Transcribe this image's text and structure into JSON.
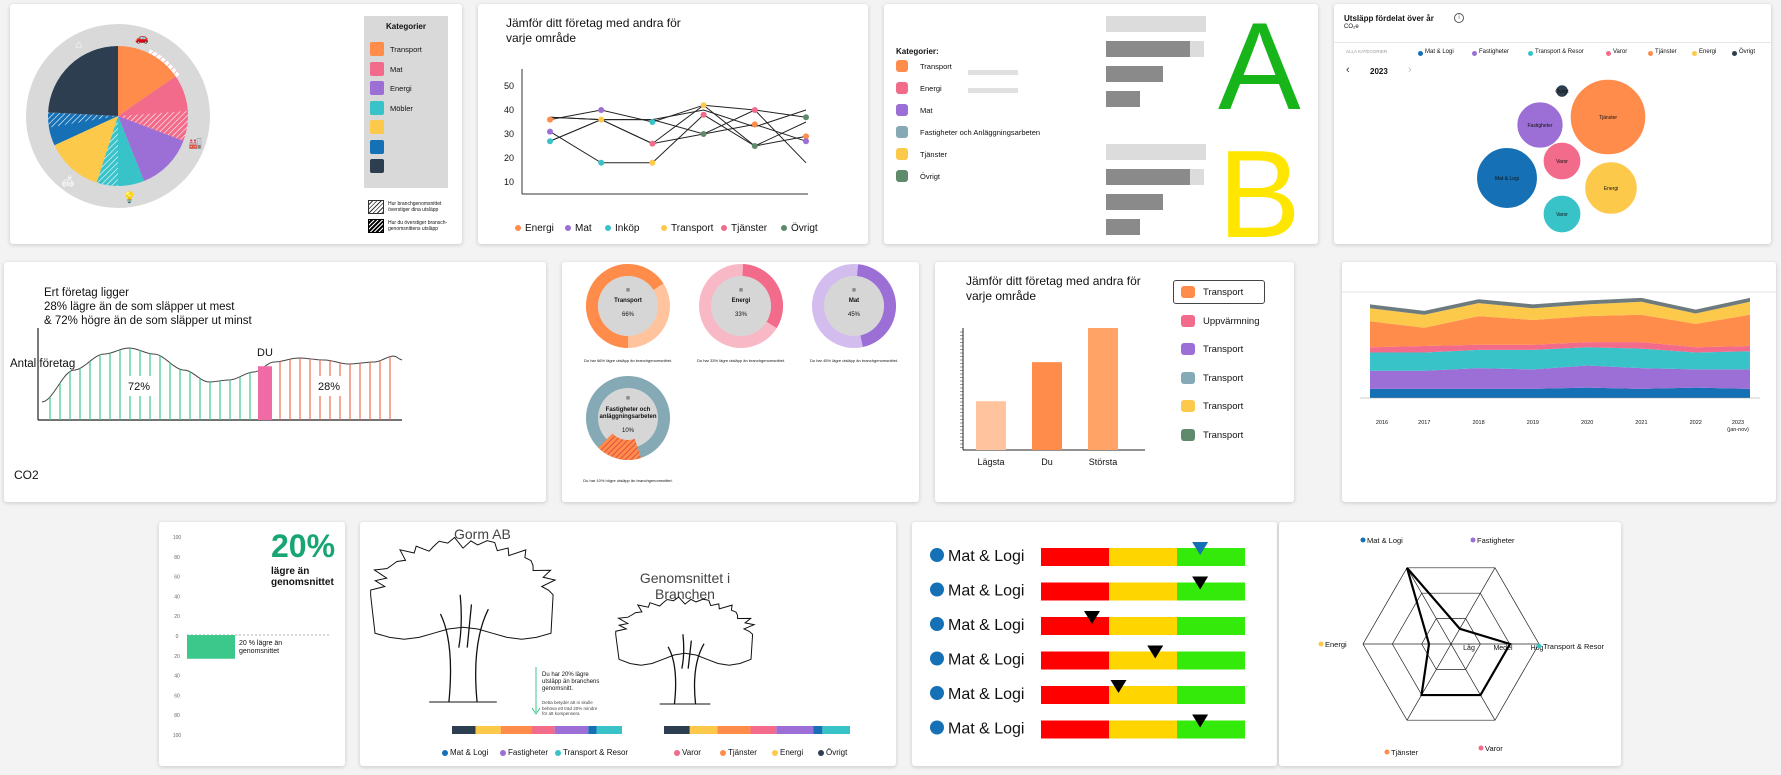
{
  "palette": {
    "orange": "#ff8c4a",
    "pink": "#f26b8a",
    "purple": "#9b6fd6",
    "teal": "#38c3c9",
    "yellow": "#fcc94b",
    "blue": "#1570b5",
    "navy": "#2c3e50",
    "gray": "#d9d9d9",
    "green": "#5f8a6b",
    "slate": "#85aab5",
    "mint": "#3cc78b",
    "red": "#ff0000",
    "amber": "#ffd500",
    "lime": "#33ea0a"
  },
  "panels": {
    "p1": {
      "legend_title": "Kategorier",
      "legend": [
        {
          "label": "Transport",
          "color": "#ff8c4a"
        },
        {
          "label": "Mat",
          "color": "#f26b8a"
        },
        {
          "label": "Energi",
          "color": "#9b6fd6"
        },
        {
          "label": "Möbler",
          "color": "#38c3c9"
        },
        {
          "label": "",
          "color": "#fcc94b"
        },
        {
          "label": "",
          "color": "#1570b5"
        },
        {
          "label": "",
          "color": "#2c3e50"
        }
      ],
      "note1": "Hur branchgenomsnittet\növerstiger dina utsläpp",
      "note2": "Hur du överstiger bransch-\ngenomsnittens utsläpp"
    },
    "p2": {
      "title": "Jämför ditt företag med andra för\nvarje område"
    },
    "p3": {
      "legend_title": "Kategorier:",
      "legend": [
        {
          "label": "Transport",
          "color": "#ff8c4a"
        },
        {
          "label": "Energi",
          "color": "#f26b8a"
        },
        {
          "label": "Mat",
          "color": "#9b6fd6"
        },
        {
          "label": "Fastigheter och Anläggningsarbeten",
          "color": "#85aab5"
        },
        {
          "label": "Tjänster",
          "color": "#fcc94b"
        },
        {
          "label": "Övrigt",
          "color": "#5f8a6b"
        }
      ],
      "grade_a": "A",
      "grade_b": "B"
    },
    "p4": {
      "title": "Utsläpp fördelat över år",
      "unit": "CO₂e",
      "filter": "ALLA KATEGORIER",
      "year": "2023",
      "legend": [
        {
          "label": "Mat & Logi",
          "color": "#1570b5"
        },
        {
          "label": "Fastigheter",
          "color": "#9b6fd6"
        },
        {
          "label": "Transport & Resor",
          "color": "#38c3c9"
        },
        {
          "label": "Varor",
          "color": "#f26b8a"
        },
        {
          "label": "Tjänster",
          "color": "#ff8c4a"
        },
        {
          "label": "Energi",
          "color": "#fcc94b"
        },
        {
          "label": "Övrigt",
          "color": "#2c3e50"
        }
      ]
    },
    "p5": {
      "text": "Ert företag ligger\n28% lägre än de som släpper ut mest\n& 72% högre än de som släpper ut minst",
      "ylabel": "Antal företag",
      "xlabel": "CO2",
      "you": "DU",
      "left_pct": "72%",
      "right_pct": "28%"
    },
    "p6": {
      "donuts": [
        {
          "label": "Transport",
          "pct": "66%",
          "value": 0.66,
          "color": "#ff8c4a",
          "light": "#ffc49e",
          "caption": "Du har 66% lägre utsläpp än branchgenomsnittet."
        },
        {
          "label": "Energi",
          "pct": "33%",
          "value": 0.33,
          "color": "#f26b8a",
          "light": "#f9b8c6",
          "caption": "Du har 33% lägre utsläpp än branchgenomsnittet."
        },
        {
          "label": "Mat",
          "pct": "45%",
          "value": 0.45,
          "color": "#9b6fd6",
          "light": "#d3bdee",
          "caption": "Du har 45% lägre utsläpp än branchgenomsnittet."
        },
        {
          "label": "Fastigheter och\nanläggningsarbeten",
          "pct": "10%",
          "value": 0.1,
          "color": "#85aab5",
          "light": "#c6d7dc",
          "caption": "Du har 10% högre utsläpp än branchgenomsnittet."
        }
      ]
    },
    "p7": {
      "title": "Jämför ditt företag med andra för\nvarje område",
      "legend": [
        {
          "label": "Transport",
          "color": "#ff8c4a"
        },
        {
          "label": "Uppvärmning",
          "color": "#f26b8a"
        },
        {
          "label": "Transport",
          "color": "#9b6fd6"
        },
        {
          "label": "Transport",
          "color": "#85aab5"
        },
        {
          "label": "Transport",
          "color": "#fcc94b"
        },
        {
          "label": "Transport",
          "color": "#5f8a6b"
        }
      ]
    },
    "p9": {
      "big": "20%",
      "sub": "lägre än\ngenomsnittet",
      "bar_label": "20 % lägre än\ngenomsnittet"
    },
    "p10": {
      "left": "Gorm AB",
      "right": "Genomsnittet i\nBranchen",
      "note": "Du har 20% lägre\nutsläpp än branchens\ngenomsnitt.",
      "note2": "Detta betyder att ni skulle\nbehöva ett träd 20% mindre\nför att kompensera",
      "legend": [
        {
          "label": "Mat & Logi",
          "color": "#1570b5"
        },
        {
          "label": "Fastigheter",
          "color": "#9b6fd6"
        },
        {
          "label": "Transport & Resor",
          "color": "#38c3c9"
        },
        {
          "label": "Varor",
          "color": "#f26b8a"
        },
        {
          "label": "Tjänster",
          "color": "#ff8c4a"
        },
        {
          "label": "Energi",
          "color": "#fcc94b"
        },
        {
          "label": "Övrigt",
          "color": "#2c3e50"
        }
      ]
    },
    "p11": {
      "rows": [
        {
          "label": "Mat & Logi",
          "value": 0.78
        },
        {
          "label": "Mat & Logi",
          "value": 0.78
        },
        {
          "label": "Mat & Logi",
          "value": 0.25
        },
        {
          "label": "Mat & Logi",
          "value": 0.56
        },
        {
          "label": "Mat & Logi",
          "value": 0.38
        },
        {
          "label": "Mat & Logi",
          "value": 0.78
        }
      ]
    },
    "p12": {
      "axes": [
        {
          "label": "Mat & Logi",
          "color": "#1570b5"
        },
        {
          "label": "Fastigheter",
          "color": "#9b6fd6"
        },
        {
          "label": "Transport & Resor",
          "color": "#38c3c9"
        },
        {
          "label": "Varor",
          "color": "#f26b8a"
        },
        {
          "label": "Tjänster",
          "color": "#ff8c4a"
        },
        {
          "label": "Energi",
          "color": "#fcc94b"
        }
      ],
      "levels": [
        "Låg",
        "Medel",
        "Hög"
      ]
    }
  },
  "chart_data": [
    {
      "type": "pie",
      "id": "p1",
      "categories": [
        "Transport",
        "Mat",
        "Energi",
        "Möbler",
        "",
        "",
        ""
      ],
      "values": [
        14,
        14,
        12,
        10,
        12,
        7,
        22
      ]
    },
    {
      "type": "line",
      "id": "p2",
      "title": "Jämför ditt företag med andra för\nvarje område",
      "categories": [
        "Energi",
        "Mat",
        "Inköp",
        "Transport",
        "Tjänster",
        "Övrigt"
      ],
      "ylim": [
        5,
        55
      ],
      "yticks": [
        10,
        20,
        30,
        40,
        50
      ],
      "series": [
        {
          "values": [
            36,
            40,
            35,
            42,
            40,
            37
          ]
        },
        {
          "values": [
            31,
            18,
            18,
            38,
            25,
            29
          ]
        },
        {
          "values": [
            27,
            36,
            26,
            30,
            34,
            27
          ]
        },
        {
          "values": [
            37,
            36,
            36,
            40,
            33,
            40
          ]
        },
        {
          "values": [
            27,
            36,
            36,
            30,
            40,
            18
          ]
        },
        {
          "values": [
            37,
            36,
            26,
            42,
            25,
            35
          ]
        }
      ]
    },
    {
      "type": "bar",
      "id": "p3",
      "series": [
        {
          "name": "A",
          "values": [
            1.0,
            0.84,
            0.57,
            0.34
          ]
        },
        {
          "name": "B",
          "values": [
            1.0,
            0.84,
            0.57,
            0.34
          ]
        }
      ]
    },
    {
      "type": "scatter",
      "id": "p4",
      "title": "Utsläpp fördelat över år",
      "year": "2023",
      "series": [
        {
          "name": "Tjänster",
          "size": 36
        },
        {
          "name": "Mat & Logi",
          "size": 29
        },
        {
          "name": "Energi",
          "size": 25
        },
        {
          "name": "Fastigheter",
          "size": 22
        },
        {
          "name": "Varor",
          "size": 18
        },
        {
          "name": "Transport & Resor",
          "size": 18
        },
        {
          "name": "Övrigt",
          "size": 6
        }
      ]
    },
    {
      "type": "area",
      "id": "p5",
      "ylabel": "Antal företag",
      "xlabel": "CO2"
    },
    {
      "type": "pie",
      "id": "p6",
      "values": [
        66,
        33,
        45,
        10
      ]
    },
    {
      "type": "bar",
      "id": "p7",
      "categories": [
        "Lägsta",
        "Du",
        "Största"
      ],
      "values": [
        0.4,
        0.72,
        1.0
      ]
    },
    {
      "type": "area",
      "id": "p8",
      "categories": [
        "2016",
        "2017",
        "2018",
        "2019",
        "2020",
        "2021",
        "2022",
        "2023\n(jan-nov)"
      ],
      "series": [
        {
          "values": [
            0.07,
            0.07,
            0.07,
            0.07,
            0.08,
            0.07,
            0.08,
            0.07
          ]
        },
        {
          "values": [
            0.14,
            0.14,
            0.16,
            0.15,
            0.17,
            0.16,
            0.14,
            0.15
          ]
        },
        {
          "values": [
            0.14,
            0.14,
            0.14,
            0.15,
            0.14,
            0.15,
            0.13,
            0.14
          ]
        },
        {
          "values": [
            0.04,
            0.05,
            0.04,
            0.04,
            0.04,
            0.05,
            0.04,
            0.04
          ]
        },
        {
          "values": [
            0.2,
            0.14,
            0.22,
            0.19,
            0.2,
            0.21,
            0.18,
            0.24
          ]
        },
        {
          "values": [
            0.1,
            0.1,
            0.1,
            0.09,
            0.09,
            0.1,
            0.08,
            0.1
          ]
        },
        {
          "values": [
            0.03,
            0.03,
            0.03,
            0.03,
            0.03,
            0.03,
            0.03,
            0.03
          ]
        }
      ]
    },
    {
      "type": "bar",
      "id": "p9",
      "yticks": [
        "100",
        "80",
        "60",
        "40",
        "20",
        "0",
        "20",
        "40",
        "60",
        "80",
        "100"
      ],
      "values": [
        -20
      ]
    },
    {
      "type": "bar",
      "id": "p10",
      "values": [
        14,
        15,
        18,
        14,
        20,
        5,
        15
      ]
    },
    {
      "type": "bar",
      "id": "p11",
      "categories": [
        "Mat & Logi",
        "Mat & Logi",
        "Mat & Logi",
        "Mat & Logi",
        "Mat & Logi",
        "Mat & Logi"
      ],
      "values": [
        0.78,
        0.78,
        0.25,
        0.56,
        0.38,
        0.78
      ]
    },
    {
      "type": "line",
      "id": "p12",
      "categories": [
        "Mat & Logi",
        "Fastigheter",
        "Transport & Resor",
        "Varor",
        "Tjänster",
        "Energi"
      ],
      "values": [
        1.0,
        0.2,
        0.67,
        0.67,
        0.67,
        0.25
      ]
    }
  ]
}
